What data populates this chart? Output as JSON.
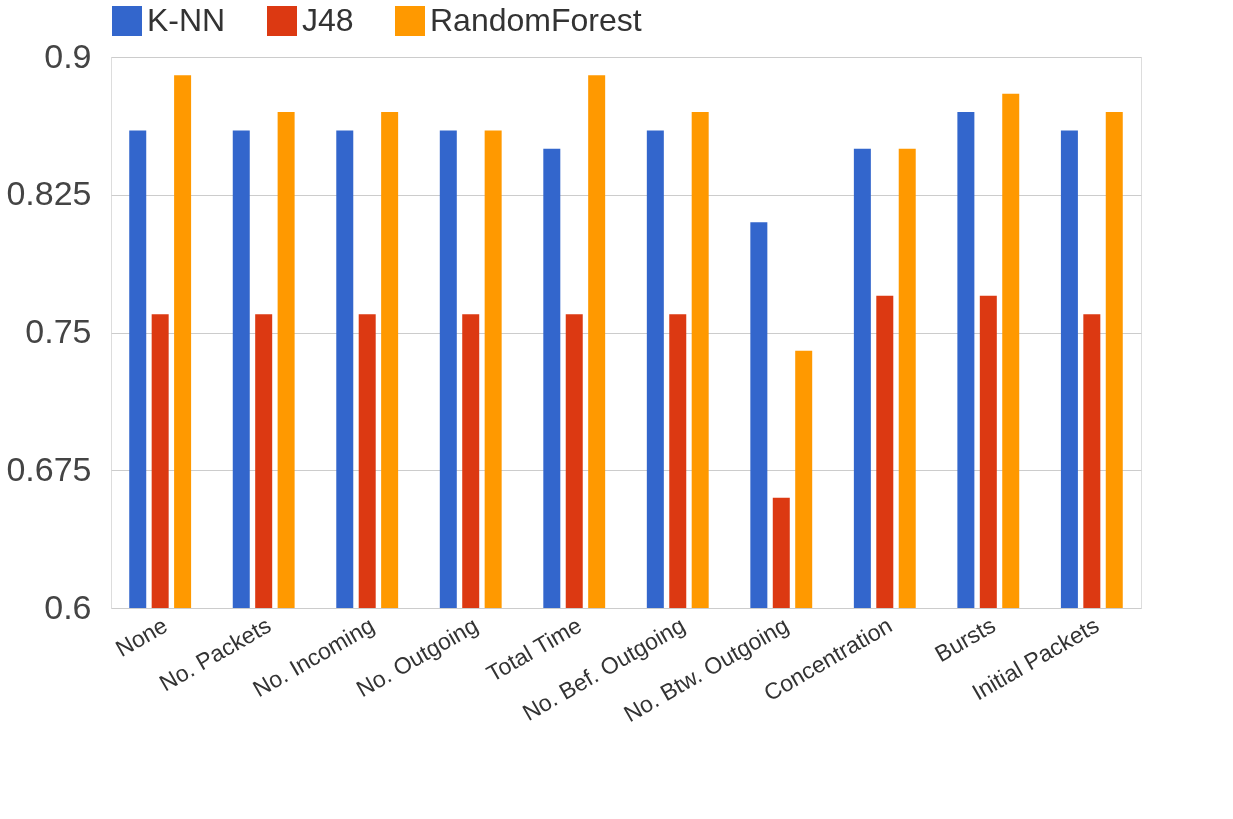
{
  "chart_data": {
    "type": "bar",
    "categories": [
      "None",
      "No. Packets",
      "No. Incoming",
      "No. Outgoing",
      "Total Time",
      "No. Bef. Outgoing",
      "No. Btw. Outgoing",
      "Concentration",
      "Bursts",
      "Initial Packets"
    ],
    "series": [
      {
        "name": "K-NN",
        "color": "#3366cc",
        "values": [
          0.86,
          0.86,
          0.86,
          0.86,
          0.85,
          0.86,
          0.81,
          0.85,
          0.87,
          0.86
        ]
      },
      {
        "name": "J48",
        "color": "#dc3912",
        "values": [
          0.76,
          0.76,
          0.76,
          0.76,
          0.76,
          0.76,
          0.66,
          0.77,
          0.77,
          0.76
        ]
      },
      {
        "name": "RandomForest",
        "color": "#ff9900",
        "values": [
          0.89,
          0.87,
          0.87,
          0.86,
          0.89,
          0.87,
          0.74,
          0.85,
          0.88,
          0.87
        ]
      }
    ],
    "ylim": [
      0.6,
      0.9
    ],
    "yticks": [
      0.6,
      0.675,
      0.75,
      0.825,
      0.9
    ],
    "grid": "y",
    "legend": "top"
  }
}
